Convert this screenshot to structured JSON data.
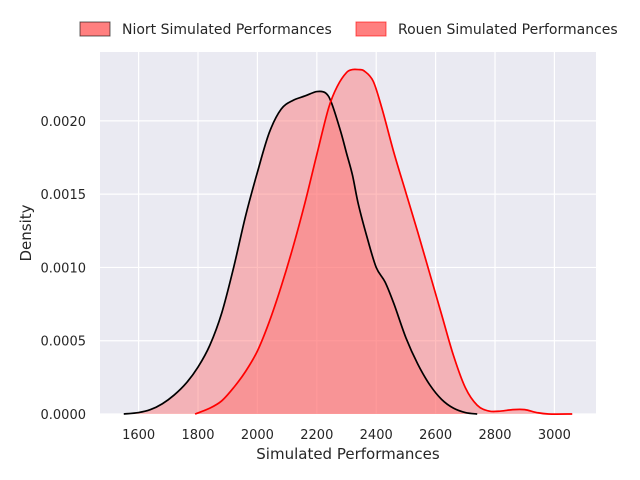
{
  "chart_data": {
    "type": "area",
    "xlabel": "Simulated Performances",
    "ylabel": "Density",
    "xlim": [
      1470,
      3140
    ],
    "ylim": [
      0,
      0.00247
    ],
    "x_ticks": [
      1600,
      1800,
      2000,
      2200,
      2400,
      2600,
      2800,
      3000
    ],
    "x_tick_labels": [
      "1600",
      "1800",
      "2000",
      "2200",
      "2400",
      "2600",
      "2800",
      "3000"
    ],
    "y_ticks": [
      0,
      0.0005,
      0.001,
      0.0015,
      0.002
    ],
    "y_tick_labels": [
      "0.0000",
      "0.0005",
      "0.0010",
      "0.0015",
      "0.0020"
    ],
    "grid": true,
    "legend_position": "top",
    "background": "#eaeaf2",
    "series": [
      {
        "name": "Niort Simulated Performances",
        "line_color": "#000000",
        "fill_color": "#ff6e6e",
        "points": [
          [
            1550,
            0.0
          ],
          [
            1600,
            1e-05
          ],
          [
            1640,
            3e-05
          ],
          [
            1680,
            7e-05
          ],
          [
            1720,
            0.00013
          ],
          [
            1760,
            0.00021
          ],
          [
            1800,
            0.00032
          ],
          [
            1840,
            0.00047
          ],
          [
            1880,
            0.00069
          ],
          [
            1920,
            0.001
          ],
          [
            1960,
            0.00135
          ],
          [
            2000,
            0.00165
          ],
          [
            2040,
            0.00192
          ],
          [
            2080,
            0.00208
          ],
          [
            2120,
            0.00214
          ],
          [
            2160,
            0.00217
          ],
          [
            2200,
            0.0022
          ],
          [
            2230,
            0.00219
          ],
          [
            2250,
            0.00212
          ],
          [
            2280,
            0.00193
          ],
          [
            2300,
            0.00178
          ],
          [
            2320,
            0.00163
          ],
          [
            2340,
            0.00143
          ],
          [
            2370,
            0.0012
          ],
          [
            2400,
            0.001
          ],
          [
            2430,
            0.0009
          ],
          [
            2460,
            0.00075
          ],
          [
            2500,
            0.00052
          ],
          [
            2540,
            0.00034
          ],
          [
            2580,
            0.0002
          ],
          [
            2620,
            0.0001
          ],
          [
            2660,
            4e-05
          ],
          [
            2700,
            1e-05
          ],
          [
            2740,
            0.0
          ]
        ]
      },
      {
        "name": "Rouen Simulated Performances",
        "line_color": "#ff0000",
        "fill_color": "#ff6e6e",
        "points": [
          [
            1790,
            0.0
          ],
          [
            1840,
            4e-05
          ],
          [
            1880,
            9e-05
          ],
          [
            1920,
            0.00018
          ],
          [
            1960,
            0.00029
          ],
          [
            2000,
            0.00043
          ],
          [
            2040,
            0.00063
          ],
          [
            2080,
            0.00087
          ],
          [
            2120,
            0.00114
          ],
          [
            2160,
            0.00144
          ],
          [
            2200,
            0.00177
          ],
          [
            2240,
            0.00209
          ],
          [
            2270,
            0.00224
          ],
          [
            2300,
            0.00233
          ],
          [
            2320,
            0.00235
          ],
          [
            2340,
            0.00235
          ],
          [
            2360,
            0.00234
          ],
          [
            2390,
            0.00227
          ],
          [
            2420,
            0.00208
          ],
          [
            2460,
            0.00178
          ],
          [
            2500,
            0.00151
          ],
          [
            2540,
            0.00124
          ],
          [
            2580,
            0.00096
          ],
          [
            2620,
            0.00068
          ],
          [
            2660,
            0.0004
          ],
          [
            2700,
            0.00018
          ],
          [
            2740,
            6e-05
          ],
          [
            2780,
            2e-05
          ],
          [
            2820,
            2e-05
          ],
          [
            2860,
            3e-05
          ],
          [
            2900,
            3e-05
          ],
          [
            2940,
            1e-05
          ],
          [
            2980,
            0.0
          ],
          [
            3060,
            0.0
          ]
        ]
      }
    ]
  }
}
